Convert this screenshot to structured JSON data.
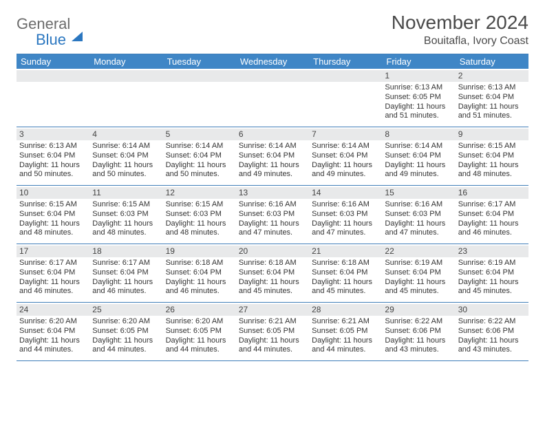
{
  "logo": {
    "word1": "General",
    "word2": "Blue"
  },
  "title": "November 2024",
  "location": "Bouitafla, Ivory Coast",
  "colors": {
    "header_bg": "#3f86c6",
    "header_text": "#ffffff",
    "rule": "#3f7db8",
    "daynum_bg": "#e8e9ea",
    "text": "#333333",
    "logo_gray": "#6b6b6b",
    "logo_blue": "#2b77c0"
  },
  "day_names": [
    "Sunday",
    "Monday",
    "Tuesday",
    "Wednesday",
    "Thursday",
    "Friday",
    "Saturday"
  ],
  "weeks": [
    [
      {
        "blank": true
      },
      {
        "blank": true
      },
      {
        "blank": true
      },
      {
        "blank": true
      },
      {
        "blank": true
      },
      {
        "n": "1",
        "sunrise": "Sunrise: 6:13 AM",
        "sunset": "Sunset: 6:05 PM",
        "daylight": "Daylight: 11 hours and 51 minutes."
      },
      {
        "n": "2",
        "sunrise": "Sunrise: 6:13 AM",
        "sunset": "Sunset: 6:04 PM",
        "daylight": "Daylight: 11 hours and 51 minutes."
      }
    ],
    [
      {
        "n": "3",
        "sunrise": "Sunrise: 6:13 AM",
        "sunset": "Sunset: 6:04 PM",
        "daylight": "Daylight: 11 hours and 50 minutes."
      },
      {
        "n": "4",
        "sunrise": "Sunrise: 6:14 AM",
        "sunset": "Sunset: 6:04 PM",
        "daylight": "Daylight: 11 hours and 50 minutes."
      },
      {
        "n": "5",
        "sunrise": "Sunrise: 6:14 AM",
        "sunset": "Sunset: 6:04 PM",
        "daylight": "Daylight: 11 hours and 50 minutes."
      },
      {
        "n": "6",
        "sunrise": "Sunrise: 6:14 AM",
        "sunset": "Sunset: 6:04 PM",
        "daylight": "Daylight: 11 hours and 49 minutes."
      },
      {
        "n": "7",
        "sunrise": "Sunrise: 6:14 AM",
        "sunset": "Sunset: 6:04 PM",
        "daylight": "Daylight: 11 hours and 49 minutes."
      },
      {
        "n": "8",
        "sunrise": "Sunrise: 6:14 AM",
        "sunset": "Sunset: 6:04 PM",
        "daylight": "Daylight: 11 hours and 49 minutes."
      },
      {
        "n": "9",
        "sunrise": "Sunrise: 6:15 AM",
        "sunset": "Sunset: 6:04 PM",
        "daylight": "Daylight: 11 hours and 48 minutes."
      }
    ],
    [
      {
        "n": "10",
        "sunrise": "Sunrise: 6:15 AM",
        "sunset": "Sunset: 6:04 PM",
        "daylight": "Daylight: 11 hours and 48 minutes."
      },
      {
        "n": "11",
        "sunrise": "Sunrise: 6:15 AM",
        "sunset": "Sunset: 6:03 PM",
        "daylight": "Daylight: 11 hours and 48 minutes."
      },
      {
        "n": "12",
        "sunrise": "Sunrise: 6:15 AM",
        "sunset": "Sunset: 6:03 PM",
        "daylight": "Daylight: 11 hours and 48 minutes."
      },
      {
        "n": "13",
        "sunrise": "Sunrise: 6:16 AM",
        "sunset": "Sunset: 6:03 PM",
        "daylight": "Daylight: 11 hours and 47 minutes."
      },
      {
        "n": "14",
        "sunrise": "Sunrise: 6:16 AM",
        "sunset": "Sunset: 6:03 PM",
        "daylight": "Daylight: 11 hours and 47 minutes."
      },
      {
        "n": "15",
        "sunrise": "Sunrise: 6:16 AM",
        "sunset": "Sunset: 6:03 PM",
        "daylight": "Daylight: 11 hours and 47 minutes."
      },
      {
        "n": "16",
        "sunrise": "Sunrise: 6:17 AM",
        "sunset": "Sunset: 6:04 PM",
        "daylight": "Daylight: 11 hours and 46 minutes."
      }
    ],
    [
      {
        "n": "17",
        "sunrise": "Sunrise: 6:17 AM",
        "sunset": "Sunset: 6:04 PM",
        "daylight": "Daylight: 11 hours and 46 minutes."
      },
      {
        "n": "18",
        "sunrise": "Sunrise: 6:17 AM",
        "sunset": "Sunset: 6:04 PM",
        "daylight": "Daylight: 11 hours and 46 minutes."
      },
      {
        "n": "19",
        "sunrise": "Sunrise: 6:18 AM",
        "sunset": "Sunset: 6:04 PM",
        "daylight": "Daylight: 11 hours and 46 minutes."
      },
      {
        "n": "20",
        "sunrise": "Sunrise: 6:18 AM",
        "sunset": "Sunset: 6:04 PM",
        "daylight": "Daylight: 11 hours and 45 minutes."
      },
      {
        "n": "21",
        "sunrise": "Sunrise: 6:18 AM",
        "sunset": "Sunset: 6:04 PM",
        "daylight": "Daylight: 11 hours and 45 minutes."
      },
      {
        "n": "22",
        "sunrise": "Sunrise: 6:19 AM",
        "sunset": "Sunset: 6:04 PM",
        "daylight": "Daylight: 11 hours and 45 minutes."
      },
      {
        "n": "23",
        "sunrise": "Sunrise: 6:19 AM",
        "sunset": "Sunset: 6:04 PM",
        "daylight": "Daylight: 11 hours and 45 minutes."
      }
    ],
    [
      {
        "n": "24",
        "sunrise": "Sunrise: 6:20 AM",
        "sunset": "Sunset: 6:04 PM",
        "daylight": "Daylight: 11 hours and 44 minutes."
      },
      {
        "n": "25",
        "sunrise": "Sunrise: 6:20 AM",
        "sunset": "Sunset: 6:05 PM",
        "daylight": "Daylight: 11 hours and 44 minutes."
      },
      {
        "n": "26",
        "sunrise": "Sunrise: 6:20 AM",
        "sunset": "Sunset: 6:05 PM",
        "daylight": "Daylight: 11 hours and 44 minutes."
      },
      {
        "n": "27",
        "sunrise": "Sunrise: 6:21 AM",
        "sunset": "Sunset: 6:05 PM",
        "daylight": "Daylight: 11 hours and 44 minutes."
      },
      {
        "n": "28",
        "sunrise": "Sunrise: 6:21 AM",
        "sunset": "Sunset: 6:05 PM",
        "daylight": "Daylight: 11 hours and 44 minutes."
      },
      {
        "n": "29",
        "sunrise": "Sunrise: 6:22 AM",
        "sunset": "Sunset: 6:06 PM",
        "daylight": "Daylight: 11 hours and 43 minutes."
      },
      {
        "n": "30",
        "sunrise": "Sunrise: 6:22 AM",
        "sunset": "Sunset: 6:06 PM",
        "daylight": "Daylight: 11 hours and 43 minutes."
      }
    ]
  ]
}
